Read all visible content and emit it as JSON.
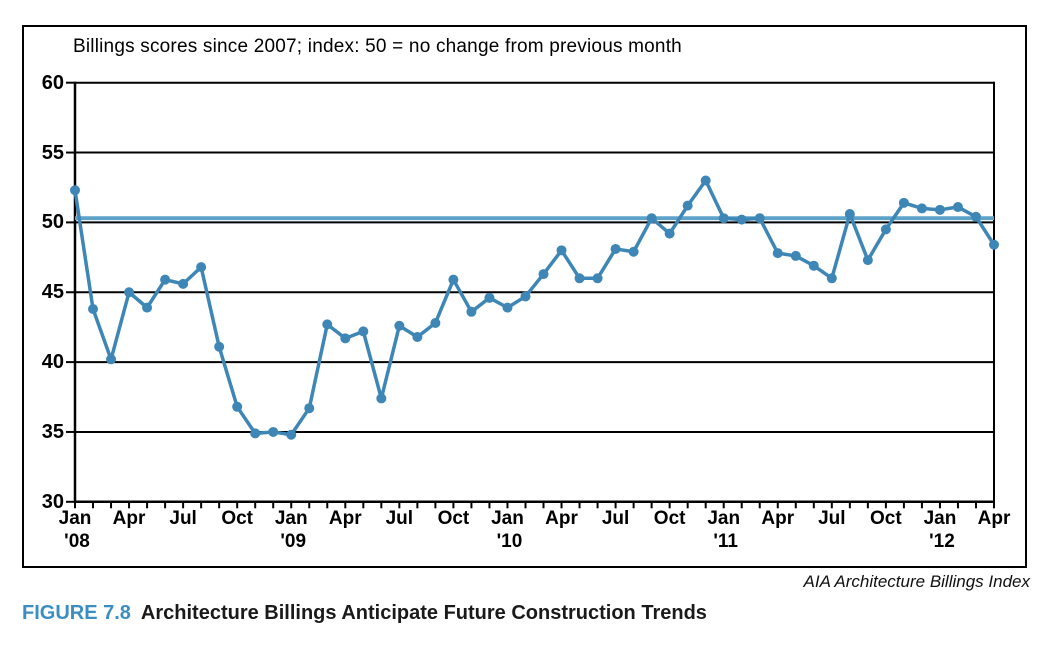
{
  "figure": {
    "source_credit": "AIA Architecture Billings Index",
    "caption_label": "FIGURE 7.8",
    "caption_title": "Architecture Billings Anticipate Future Construction Trends"
  },
  "colors": {
    "series_line": "#3d86b5",
    "marker_fill": "#3d86b5",
    "reference_line": "#5da2c8",
    "grid_line": "#000000",
    "axis_line": "#000000",
    "caption_label_blue": "#3b8ec2"
  },
  "chart_data": {
    "type": "line",
    "title": "Billings scores since 2007; index: 50 = no change from previous month",
    "x": [
      "Jan '08",
      "Feb '08",
      "Mar '08",
      "Apr '08",
      "May '08",
      "Jun '08",
      "Jul '08",
      "Aug '08",
      "Sep '08",
      "Oct '08",
      "Nov '08",
      "Dec '08",
      "Jan '09",
      "Feb '09",
      "Mar '09",
      "Apr '09",
      "May '09",
      "Jun '09",
      "Jul '09",
      "Aug '09",
      "Sep '09",
      "Oct '09",
      "Nov '09",
      "Dec '09",
      "Jan '10",
      "Feb '10",
      "Mar '10",
      "Apr '10",
      "May '10",
      "Jun '10",
      "Jul '10",
      "Aug '10",
      "Sep '10",
      "Oct '10",
      "Nov '10",
      "Dec '10",
      "Jan '11",
      "Feb '11",
      "Mar '11",
      "Apr '11",
      "May '11",
      "Jun '11",
      "Jul '11",
      "Aug '11",
      "Sep '11",
      "Oct '11",
      "Nov '11",
      "Dec '11",
      "Jan '12",
      "Feb '12",
      "Mar '12",
      "Apr '12"
    ],
    "values": [
      52.3,
      43.8,
      40.2,
      45.0,
      43.9,
      45.9,
      45.6,
      46.8,
      41.1,
      36.8,
      34.9,
      35.0,
      34.8,
      36.7,
      42.7,
      41.7,
      42.2,
      37.4,
      42.6,
      41.8,
      42.8,
      45.9,
      43.6,
      44.6,
      43.9,
      44.7,
      46.3,
      48.0,
      46.0,
      46.0,
      48.1,
      47.9,
      50.3,
      49.2,
      51.2,
      53.0,
      50.3,
      50.2,
      50.3,
      47.8,
      47.6,
      46.9,
      46.0,
      50.6,
      47.3,
      49.5,
      51.4,
      51.0,
      50.9,
      51.1,
      50.4,
      48.4
    ],
    "ylim": [
      30,
      60
    ],
    "yticks": [
      30,
      35,
      40,
      45,
      50,
      55,
      60
    ],
    "x_ticks": [
      {
        "i": 0,
        "month": "Jan",
        "year": "'08"
      },
      {
        "i": 3,
        "month": "Apr"
      },
      {
        "i": 6,
        "month": "Jul"
      },
      {
        "i": 9,
        "month": "Oct"
      },
      {
        "i": 12,
        "month": "Jan",
        "year": "'09"
      },
      {
        "i": 15,
        "month": "Apr"
      },
      {
        "i": 18,
        "month": "Jul"
      },
      {
        "i": 21,
        "month": "Oct"
      },
      {
        "i": 24,
        "month": "Jan",
        "year": "'10"
      },
      {
        "i": 27,
        "month": "Apr"
      },
      {
        "i": 30,
        "month": "Jul"
      },
      {
        "i": 33,
        "month": "Oct"
      },
      {
        "i": 36,
        "month": "Jan",
        "year": "'11"
      },
      {
        "i": 39,
        "month": "Apr"
      },
      {
        "i": 42,
        "month": "Jul"
      },
      {
        "i": 45,
        "month": "Oct"
      },
      {
        "i": 48,
        "month": "Jan",
        "year": "'12"
      },
      {
        "i": 51,
        "month": "Apr"
      }
    ],
    "reference_line_y": 50,
    "grid": "horizontal gridlines at every 5 units",
    "legend": "none",
    "markers": "circle"
  }
}
